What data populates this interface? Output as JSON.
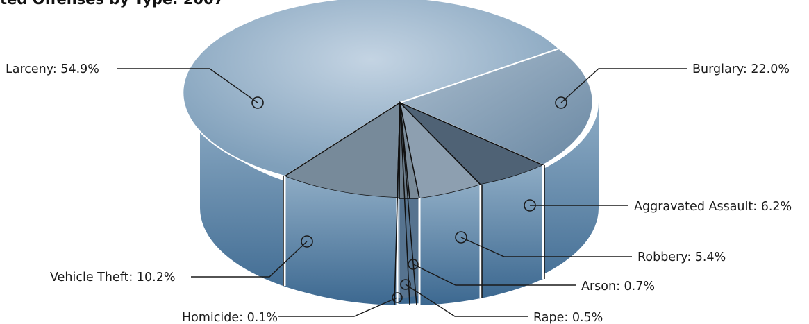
{
  "chart_data": {
    "type": "pie",
    "title": "ted Offenses by Type: 2007",
    "style": "3d",
    "colors": {
      "top": "#b7c9da",
      "side_top": "#86a5bf",
      "side_bottom": "#3e6a8f"
    },
    "slices": [
      {
        "name": "Larceny",
        "value": 54.9,
        "label": "Larceny: 54.9%"
      },
      {
        "name": "Burglary",
        "value": 22.0,
        "label": "Burglary: 22.0%"
      },
      {
        "name": "Aggravated Assault",
        "value": 6.2,
        "label": "Aggravated Assault: 6.2%"
      },
      {
        "name": "Robbery",
        "value": 5.4,
        "label": "Robbery: 5.4%"
      },
      {
        "name": "Arson",
        "value": 0.7,
        "label": "Arson: 0.7%"
      },
      {
        "name": "Rape",
        "value": 0.5,
        "label": "Rape: 0.5%"
      },
      {
        "name": "Homicide",
        "value": 0.1,
        "label": "Homicide: 0.1%"
      },
      {
        "name": "Vehicle Theft",
        "value": 10.2,
        "label": "Vehicle Theft: 10.2%"
      }
    ]
  }
}
